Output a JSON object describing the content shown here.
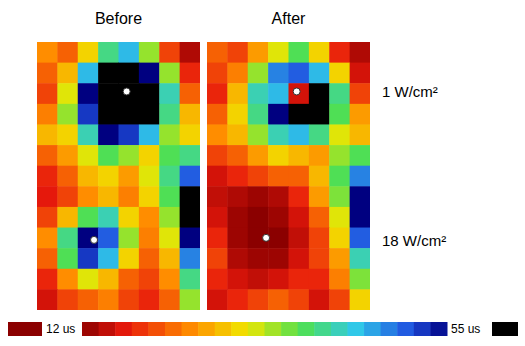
{
  "chart_data": {
    "type": "heatmap",
    "panels": [
      {
        "title": "Before",
        "cells": [
          [
            25,
            22,
            30,
            40,
            45,
            35,
            20,
            14
          ],
          [
            22,
            28,
            45,
            58,
            60,
            55,
            35,
            18
          ],
          [
            20,
            32,
            55,
            60,
            60,
            60,
            42,
            22
          ],
          [
            24,
            35,
            52,
            60,
            60,
            58,
            40,
            28
          ],
          [
            28,
            30,
            42,
            55,
            52,
            45,
            35,
            30
          ],
          [
            22,
            26,
            32,
            38,
            35,
            30,
            38,
            40
          ],
          [
            18,
            22,
            28,
            30,
            26,
            32,
            40,
            50
          ],
          [
            17,
            20,
            25,
            28,
            24,
            30,
            38,
            58
          ],
          [
            20,
            28,
            38,
            42,
            30,
            25,
            35,
            60
          ],
          [
            25,
            40,
            55,
            50,
            35,
            24,
            32,
            55
          ],
          [
            22,
            38,
            52,
            45,
            30,
            22,
            28,
            48
          ],
          [
            18,
            25,
            32,
            28,
            22,
            20,
            25,
            40
          ],
          [
            16,
            20,
            22,
            24,
            20,
            18,
            22,
            35
          ]
        ],
        "markers": [
          {
            "x": 4.4,
            "y": 2.4
          },
          {
            "x": 2.8,
            "y": 9.6
          }
        ]
      },
      {
        "title": "After",
        "cells": [
          [
            22,
            20,
            26,
            32,
            38,
            30,
            18,
            14
          ],
          [
            20,
            24,
            35,
            48,
            50,
            45,
            30,
            16
          ],
          [
            18,
            28,
            42,
            45,
            16,
            60,
            40,
            20
          ],
          [
            22,
            30,
            40,
            55,
            60,
            58,
            38,
            26
          ],
          [
            25,
            28,
            35,
            42,
            45,
            40,
            32,
            28
          ],
          [
            20,
            22,
            26,
            30,
            28,
            26,
            35,
            38
          ],
          [
            16,
            18,
            20,
            22,
            22,
            28,
            38,
            48
          ],
          [
            15,
            14,
            13,
            14,
            18,
            26,
            36,
            55
          ],
          [
            16,
            13,
            12,
            13,
            16,
            22,
            32,
            55
          ],
          [
            18,
            13,
            12,
            12,
            15,
            20,
            30,
            50
          ],
          [
            20,
            14,
            13,
            13,
            16,
            20,
            26,
            42
          ],
          [
            18,
            16,
            15,
            16,
            18,
            18,
            24,
            36
          ],
          [
            16,
            18,
            20,
            22,
            20,
            16,
            20,
            30
          ]
        ],
        "markers": [
          {
            "x": 4.4,
            "y": 2.4
          },
          {
            "x": 2.9,
            "y": 9.5
          }
        ]
      }
    ],
    "row_labels": [
      "1 W/cm²",
      "18 W/cm²"
    ],
    "colorbar": {
      "range": [
        12,
        55
      ],
      "ticks": [
        {
          "value": 12,
          "label": "12 us"
        },
        {
          "value": 55,
          "label": "55 us"
        }
      ]
    }
  }
}
